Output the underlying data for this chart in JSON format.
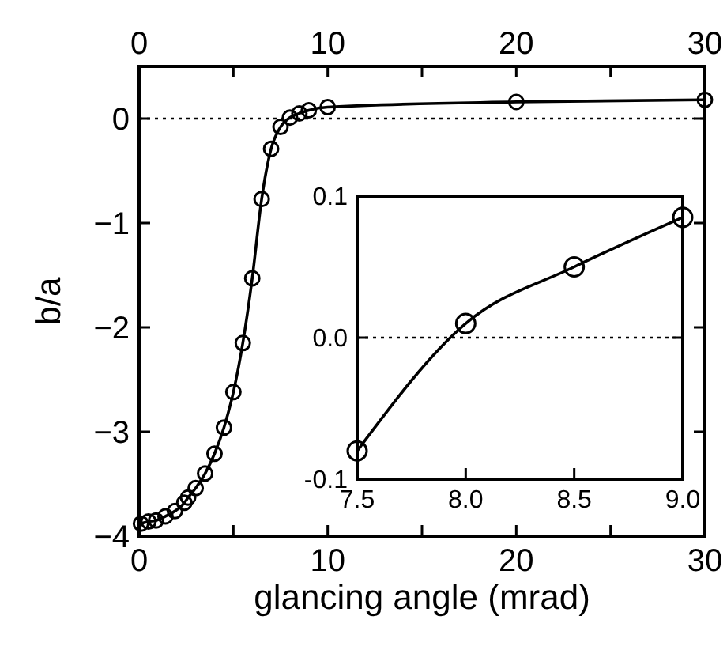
{
  "chart_data": [
    {
      "type": "line",
      "xlabel": "glancing angle (mrad)",
      "ylabel": "b/a",
      "marker": "circle",
      "line_style": "solid",
      "grid": false,
      "xlim": [
        0,
        30
      ],
      "ylim": [
        -4,
        0.5
      ],
      "xticks": [
        0,
        {
          "value": 5,
          "label": null
        },
        10,
        {
          "value": 15,
          "label": null
        },
        20,
        {
          "value": 25,
          "label": null
        },
        30
      ],
      "x2lim": [
        0,
        30
      ],
      "x2ticks": [
        0,
        {
          "value": 5,
          "label": null
        },
        10,
        {
          "value": 15,
          "label": null
        },
        20,
        {
          "value": 25,
          "label": null
        },
        30
      ],
      "yticks": [
        -4,
        -3,
        -2,
        -1,
        0
      ],
      "ref_lines": [
        {
          "axis": "y",
          "value": 0,
          "line_style": "dotted"
        }
      ],
      "series": [
        {
          "color": "#000000",
          "x": [
            0.1,
            0.5,
            0.9,
            1.4,
            1.9,
            2.4,
            2.6,
            3.0,
            3.5,
            4.0,
            4.5,
            5.0,
            5.5,
            6.0,
            6.5,
            7.0,
            7.5,
            8.0,
            8.5,
            9.0,
            10,
            20,
            30
          ],
          "values": [
            -3.88,
            -3.86,
            -3.85,
            -3.81,
            -3.76,
            -3.68,
            -3.63,
            -3.54,
            -3.4,
            -3.21,
            -2.96,
            -2.62,
            -2.15,
            -1.53,
            -0.77,
            -0.29,
            -0.08,
            0.01,
            0.05,
            0.08,
            0.11,
            0.16,
            0.18
          ]
        }
      ]
    },
    {
      "type": "line",
      "marker": "circle",
      "line_style": "solid",
      "grid": false,
      "xlim": [
        7.5,
        9.0
      ],
      "ylim": [
        -0.1,
        0.1
      ],
      "xticks": [
        {
          "value": 7.5,
          "label": "7.5"
        },
        {
          "value": 8.0,
          "label": "8.0"
        },
        {
          "value": 8.5,
          "label": "8.5"
        },
        {
          "value": 9.0,
          "label": "9.0"
        }
      ],
      "yticks": [
        {
          "value": -0.1,
          "label": "-0.1"
        },
        {
          "value": 0,
          "label": "0.0"
        },
        {
          "value": 0.1,
          "label": "0.1"
        }
      ],
      "ref_lines": [
        {
          "axis": "y",
          "value": 0,
          "line_style": "dotted"
        }
      ],
      "series": [
        {
          "color": "#000000",
          "x": [
            7.5,
            8.0,
            8.5,
            9.0
          ],
          "values": [
            -0.08,
            0.01,
            0.05,
            0.085
          ]
        }
      ]
    }
  ]
}
